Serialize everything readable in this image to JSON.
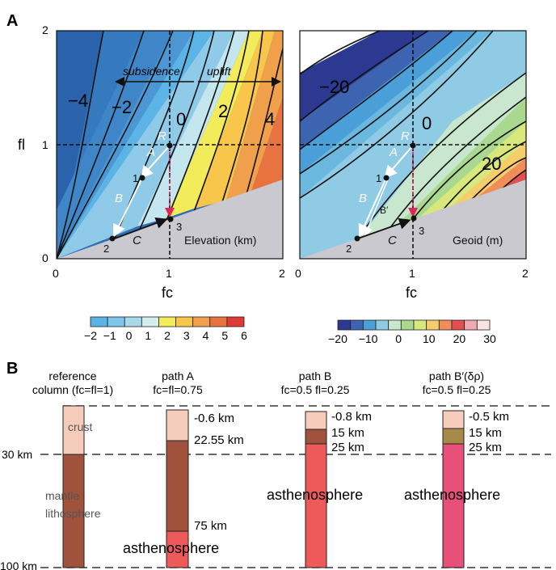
{
  "panel_a": {
    "label": "A",
    "left": {
      "y_ticks": [
        "2",
        "1",
        "0"
      ],
      "x_ticks": [
        "0",
        "1",
        "2"
      ],
      "y_axis_label": "fl",
      "x_axis_label": "fc",
      "arrow_left_label": "subsidence",
      "arrow_right_label": "uplift",
      "contour_labels": [
        "−4",
        "−2",
        "0",
        "2",
        "4"
      ],
      "point_R": "R",
      "point_1": "1",
      "point_2": "2",
      "point_3": "3",
      "path_A": "A",
      "path_B": "B",
      "path_C": "C",
      "caption": "Elevation (km)"
    },
    "right": {
      "x_ticks": [
        "0",
        "1",
        "2"
      ],
      "x_axis_label": "fc",
      "contour_labels": [
        "−20",
        "0",
        "20"
      ],
      "point_R": "R",
      "point_1": "1",
      "point_2": "2",
      "point_3": "3",
      "path_A": "A",
      "path_B": "B",
      "path_Bp": "B′",
      "path_C": "C",
      "caption": "Geoid (m)"
    },
    "colorbar_left": {
      "ticks": [
        "−2",
        "−1",
        "0",
        "1",
        "2",
        "3",
        "4",
        "5",
        "6"
      ],
      "colors": [
        "#5ab4e6",
        "#7fc6eb",
        "#a8d8ea",
        "#d4eef0",
        "#f3ec5a",
        "#f8c64a",
        "#f0a04a",
        "#e9733f",
        "#dd3b37"
      ]
    },
    "colorbar_right": {
      "ticks": [
        "−20",
        "−10",
        "0",
        "10",
        "20",
        "30"
      ],
      "colors": [
        "#2b3990",
        "#3c64b1",
        "#4a9fd8",
        "#8fcbe4",
        "#c9e7cf",
        "#a9d88e",
        "#d9e87a",
        "#f5cd6a",
        "#f08d5a",
        "#e34e4f",
        "#eeaab0",
        "#fbe3e3"
      ]
    }
  },
  "panel_b": {
    "label": "B",
    "columns": [
      {
        "title_1": "reference",
        "title_2": "column (fc=fl=1)",
        "layers": [
          "crust",
          "mantle",
          "lithosphere"
        ]
      },
      {
        "title_1": "path A",
        "title_2": "fc=fl=0.75",
        "depths": [
          "-0.6 km",
          "22.55 km",
          "75 km"
        ],
        "bottom": "asthenosphere"
      },
      {
        "title_1": "path B",
        "title_2": "fc=0.5 fl=0.25",
        "depths": [
          "-0.8 km",
          "15 km",
          "25 km"
        ],
        "bottom": "asthenosphere"
      },
      {
        "title_1": "path B′(δρ)",
        "title_2": "fc=0.5 fl=0.25",
        "depths": [
          "-0.5 km",
          "15 km",
          "25 km"
        ],
        "bottom": "asthenosphere"
      }
    ],
    "depth_ticks": [
      "30 km",
      "100 km"
    ]
  }
}
